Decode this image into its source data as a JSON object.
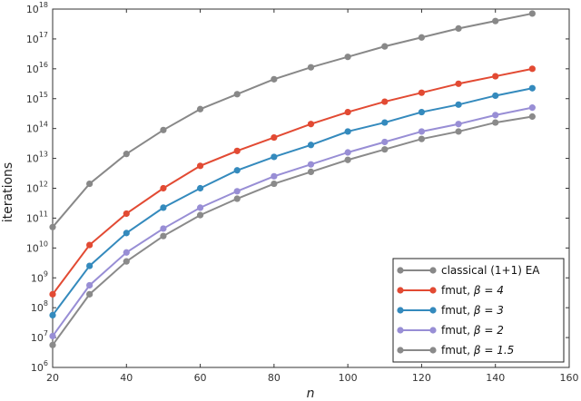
{
  "chart_data": {
    "type": "line",
    "xlabel": "n",
    "ylabel": "iterations",
    "xlim": [
      20,
      160
    ],
    "ylim_log10": [
      6,
      18
    ],
    "y_scale": "log",
    "x_ticks": [
      20,
      40,
      60,
      80,
      100,
      120,
      140,
      160
    ],
    "x_tick_labels": [
      "20",
      "40",
      "60",
      "80",
      "100",
      "120",
      "140",
      "160"
    ],
    "y_ticks": [
      {
        "base": "10",
        "exp": "6",
        "value": 6
      },
      {
        "base": "10",
        "exp": "7",
        "value": 7
      },
      {
        "base": "10",
        "exp": "8",
        "value": 8
      },
      {
        "base": "10",
        "exp": "9",
        "value": 9
      },
      {
        "base": "10",
        "exp": "10",
        "value": 10
      },
      {
        "base": "10",
        "exp": "11",
        "value": 11
      },
      {
        "base": "10",
        "exp": "12",
        "value": 12
      },
      {
        "base": "10",
        "exp": "13",
        "value": 13
      },
      {
        "base": "10",
        "exp": "14",
        "value": 14
      },
      {
        "base": "10",
        "exp": "15",
        "value": 15
      },
      {
        "base": "10",
        "exp": "16",
        "value": 16
      },
      {
        "base": "10",
        "exp": "17",
        "value": 17
      },
      {
        "base": "10",
        "exp": "18",
        "value": 18
      }
    ],
    "grid": false,
    "legend_position": "bottom-right",
    "x": [
      20,
      30,
      40,
      50,
      60,
      70,
      80,
      90,
      100,
      110,
      120,
      130,
      140,
      150
    ],
    "series": [
      {
        "name": "classical (1+1) EA",
        "name_parts": {
          "prefix": "classical (1+1) EA",
          "beta": ""
        },
        "color": "#888888",
        "log10_values": [
          10.7,
          12.15,
          13.15,
          13.95,
          14.65,
          15.15,
          15.65,
          16.05,
          16.4,
          16.75,
          17.05,
          17.35,
          17.6,
          17.85
        ]
      },
      {
        "name": "fmut, β = 4",
        "name_parts": {
          "prefix": "fmut, ",
          "beta": "β = 4"
        },
        "color": "#e24a33",
        "log10_values": [
          8.45,
          10.1,
          11.15,
          12.0,
          12.75,
          13.25,
          13.7,
          14.15,
          14.55,
          14.9,
          15.2,
          15.5,
          15.75,
          16.0
        ]
      },
      {
        "name": "fmut, β = 3",
        "name_parts": {
          "prefix": "fmut, ",
          "beta": "β = 3"
        },
        "color": "#348abd",
        "log10_values": [
          7.75,
          9.4,
          10.5,
          11.35,
          12.0,
          12.6,
          13.05,
          13.45,
          13.9,
          14.2,
          14.55,
          14.8,
          15.1,
          15.35
        ]
      },
      {
        "name": "fmut, β = 2",
        "name_parts": {
          "prefix": "fmut, ",
          "beta": "β = 2"
        },
        "color": "#988ed5",
        "log10_values": [
          7.05,
          8.75,
          9.85,
          10.65,
          11.35,
          11.9,
          12.4,
          12.8,
          13.2,
          13.55,
          13.9,
          14.15,
          14.45,
          14.7
        ]
      },
      {
        "name": "fmut, β = 1.5",
        "name_parts": {
          "prefix": "fmut, ",
          "beta": "β = 1.5"
        },
        "color": "#8a8a8a",
        "log10_values": [
          6.75,
          8.45,
          9.55,
          10.4,
          11.1,
          11.65,
          12.15,
          12.55,
          12.95,
          13.3,
          13.65,
          13.9,
          14.2,
          14.4
        ]
      }
    ]
  }
}
